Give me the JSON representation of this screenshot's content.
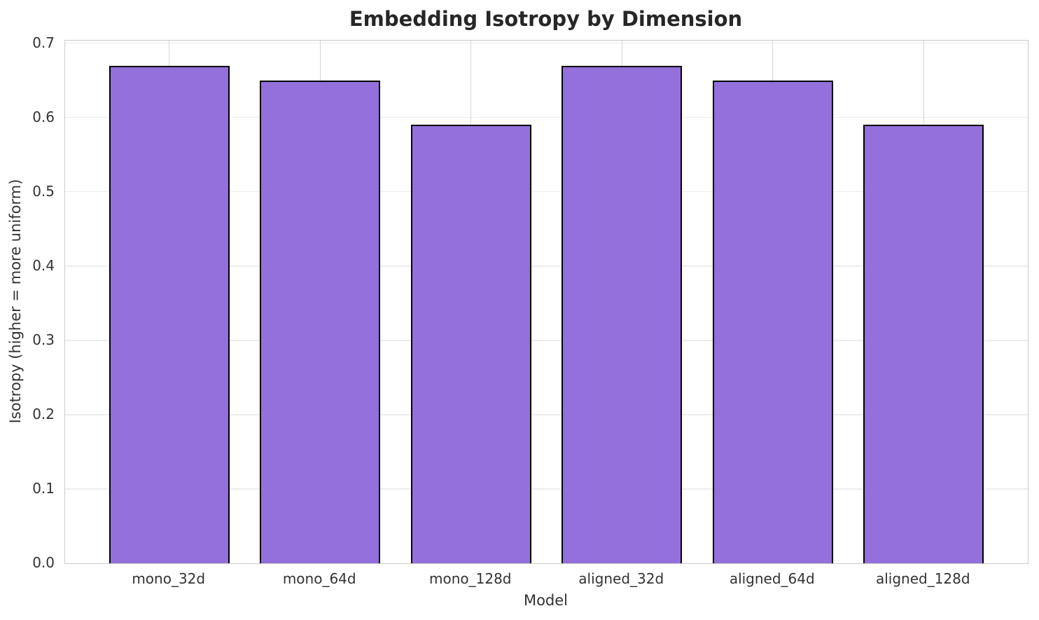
{
  "chart_data": {
    "type": "bar",
    "title": "Embedding Isotropy by Dimension",
    "xlabel": "Model",
    "ylabel": "Isotropy (higher = more uniform)",
    "categories": [
      "mono_32d",
      "mono_64d",
      "mono_128d",
      "aligned_32d",
      "aligned_64d",
      "aligned_128d"
    ],
    "values": [
      0.67,
      0.65,
      0.59,
      0.67,
      0.65,
      0.59
    ],
    "ylim": [
      0,
      0.7035
    ],
    "yticks": [
      "0.0",
      "0.1",
      "0.2",
      "0.3",
      "0.4",
      "0.5",
      "0.6",
      "0.7"
    ],
    "grid": true,
    "legend_position": "none",
    "colors": {
      "bar_fill": "#9370DB",
      "bar_edge": "#000000",
      "grid_horizontal": "#ececec",
      "grid_vertical": "#d6d6d6",
      "spine": "#cbcbcb",
      "tick_text": "#333333",
      "title_text": "#262626"
    }
  }
}
